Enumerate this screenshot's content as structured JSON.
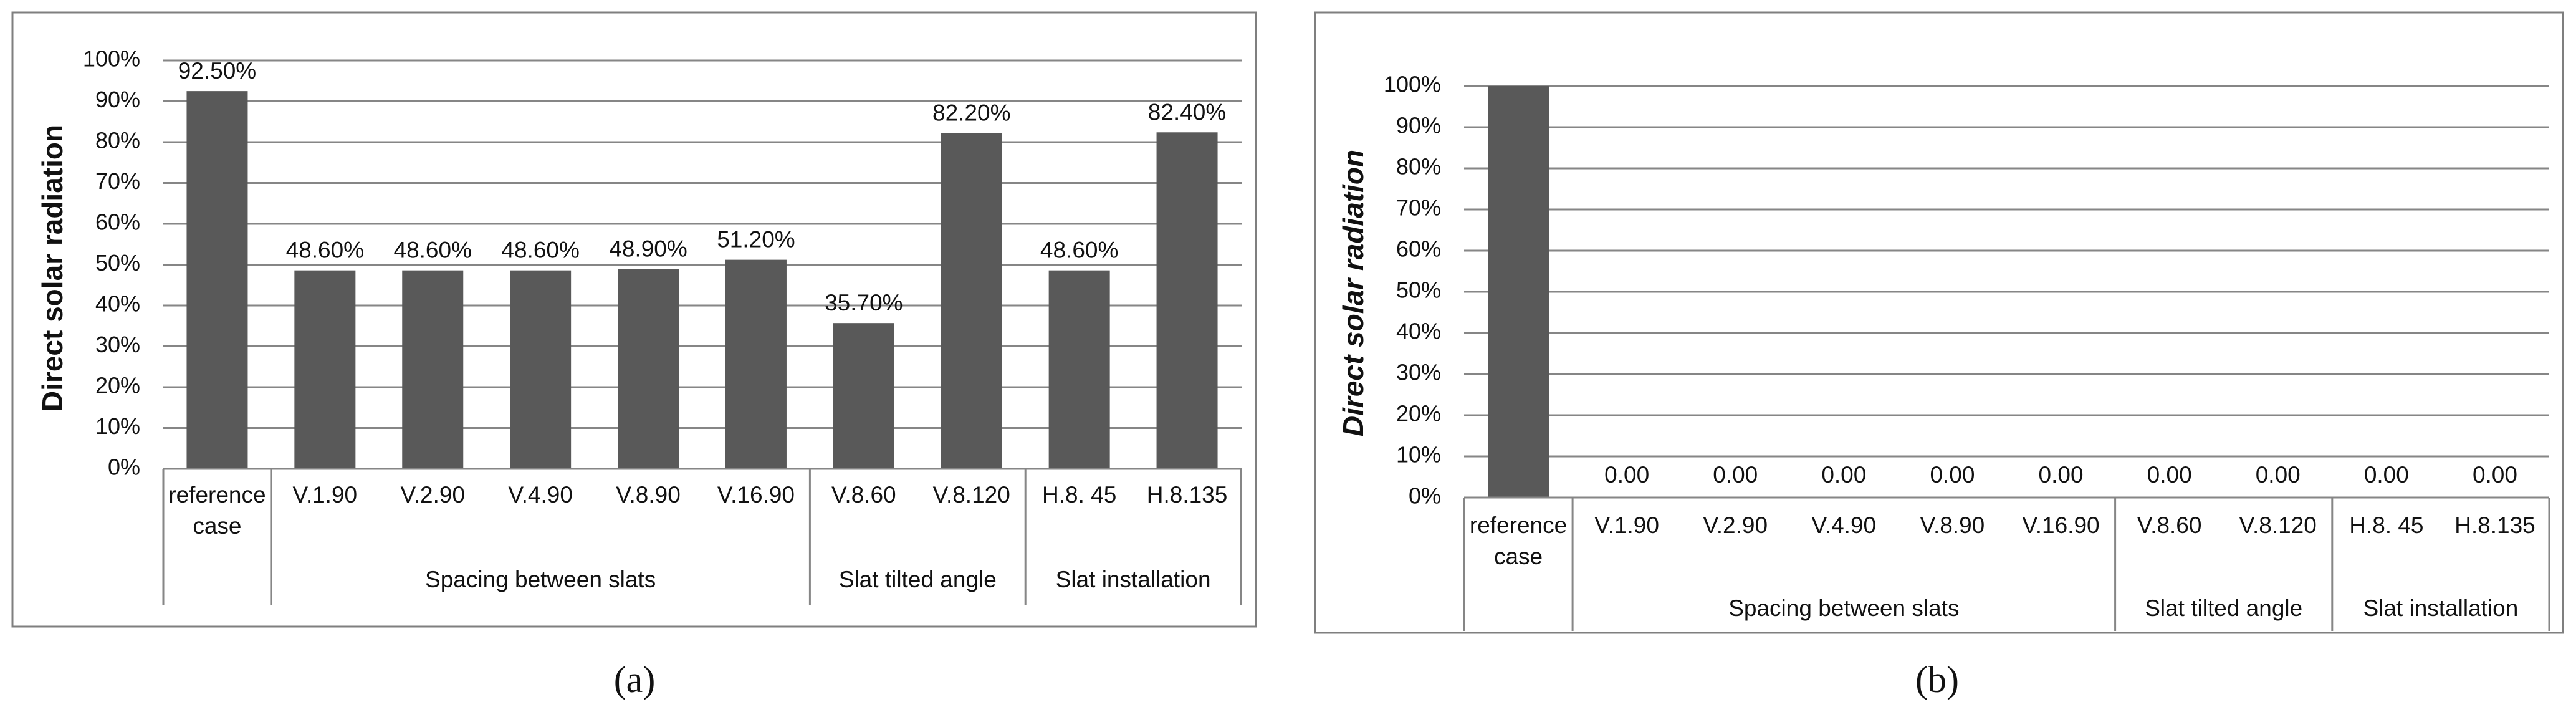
{
  "colors": {
    "bar": "#595959",
    "grid": "#868686",
    "frame": "#7f7f7f",
    "axis": "#868686",
    "text": "#111111"
  },
  "chart_data": [
    {
      "type": "bar",
      "panel": "(a)",
      "categories": [
        "reference case",
        "V.1.90",
        "V.2.90",
        "V.4.90",
        "V.8.90",
        "V.16.90",
        "V.8.60",
        "V.8.120",
        "H.8. 45",
        "H.8.135"
      ],
      "category_lines": [
        [
          "reference",
          "case"
        ],
        [
          "V.1.90"
        ],
        [
          "V.2.90"
        ],
        [
          "V.4.90"
        ],
        [
          "V.8.90"
        ],
        [
          "V.16.90"
        ],
        [
          "V.8.60"
        ],
        [
          "V.8.120"
        ],
        [
          "H.8. 45"
        ],
        [
          "H.8.135"
        ]
      ],
      "values": [
        92.5,
        48.6,
        48.6,
        48.6,
        48.9,
        51.2,
        35.7,
        82.2,
        48.6,
        82.4
      ],
      "data_labels": [
        "92.50%",
        "48.60%",
        "48.60%",
        "48.60%",
        "48.90%",
        "51.20%",
        "35.70%",
        "82.20%",
        "48.60%",
        "82.40%"
      ],
      "groups": [
        {
          "label": "Spacing between slats",
          "start": 1,
          "end": 5
        },
        {
          "label": "Slat tilted angle",
          "start": 6,
          "end": 7
        },
        {
          "label": "Slat installation",
          "start": 8,
          "end": 9
        }
      ],
      "yticks": [
        "0%",
        "10%",
        "20%",
        "30%",
        "40%",
        "50%",
        "60%",
        "70%",
        "80%",
        "90%",
        "100%"
      ],
      "ylim": [
        0,
        100
      ],
      "ylabel": "Direct solar radiation",
      "title": "",
      "grid": true
    },
    {
      "type": "bar",
      "panel": "(b)",
      "categories": [
        "reference case",
        "V.1.90",
        "V.2.90",
        "V.4.90",
        "V.8.90",
        "V.16.90",
        "V.8.60",
        "V.8.120",
        "H.8. 45",
        "H.8.135"
      ],
      "category_lines": [
        [
          "reference",
          "case"
        ],
        [
          "V.1.90"
        ],
        [
          "V.2.90"
        ],
        [
          "V.4.90"
        ],
        [
          "V.8.90"
        ],
        [
          "V.16.90"
        ],
        [
          "V.8.60"
        ],
        [
          "V.8.120"
        ],
        [
          "H.8. 45"
        ],
        [
          "H.8.135"
        ]
      ],
      "values": [
        100,
        0,
        0,
        0,
        0,
        0,
        0,
        0,
        0,
        0
      ],
      "data_labels": [
        "",
        "0.00",
        "0.00",
        "0.00",
        "0.00",
        "0.00",
        "0.00",
        "0.00",
        "0.00",
        "0.00"
      ],
      "groups": [
        {
          "label": "Spacing between slats",
          "start": 1,
          "end": 5
        },
        {
          "label": "Slat tilted angle",
          "start": 6,
          "end": 7
        },
        {
          "label": "Slat installation",
          "start": 8,
          "end": 9
        }
      ],
      "yticks": [
        "0%",
        "10%",
        "20%",
        "30%",
        "40%",
        "50%",
        "60%",
        "70%",
        "80%",
        "90%",
        "100%"
      ],
      "ylim": [
        0,
        100
      ],
      "ylabel": "Direct solar radiation",
      "title": "",
      "grid": true
    }
  ]
}
